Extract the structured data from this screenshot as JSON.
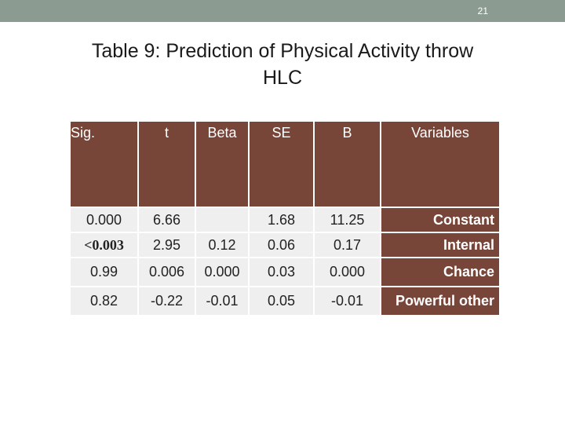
{
  "slide": {
    "page_number": "21",
    "title_line1": "Table 9: Prediction of Physical Activity throw",
    "title_line2": "HLC"
  },
  "table": {
    "headers": [
      "Sig.",
      "t",
      "Beta",
      "SE",
      "B",
      "Variables"
    ],
    "rows": [
      {
        "sig": "0.000",
        "t": "6.66",
        "beta": "",
        "se": "1.68",
        "b": "11.25",
        "variable": "Constant"
      },
      {
        "sig": "<0.003",
        "t": "2.95",
        "beta": "0.12",
        "se": "0.06",
        "b": "0.17",
        "variable": "Internal"
      },
      {
        "sig": "0.99",
        "t": "0.006",
        "beta": "0.000",
        "se": "0.03",
        "b": "0.000",
        "variable": "Chance"
      },
      {
        "sig": "0.82",
        "t": "-0.22",
        "beta": "-0.01",
        "se": "0.05",
        "b": "-0.01",
        "variable": "Powerful other"
      }
    ]
  },
  "colors": {
    "header_bg": "#784539",
    "cell_bg": "#efefef",
    "topbar": "#8c9b92",
    "sig_highlight": "#c0242a"
  }
}
